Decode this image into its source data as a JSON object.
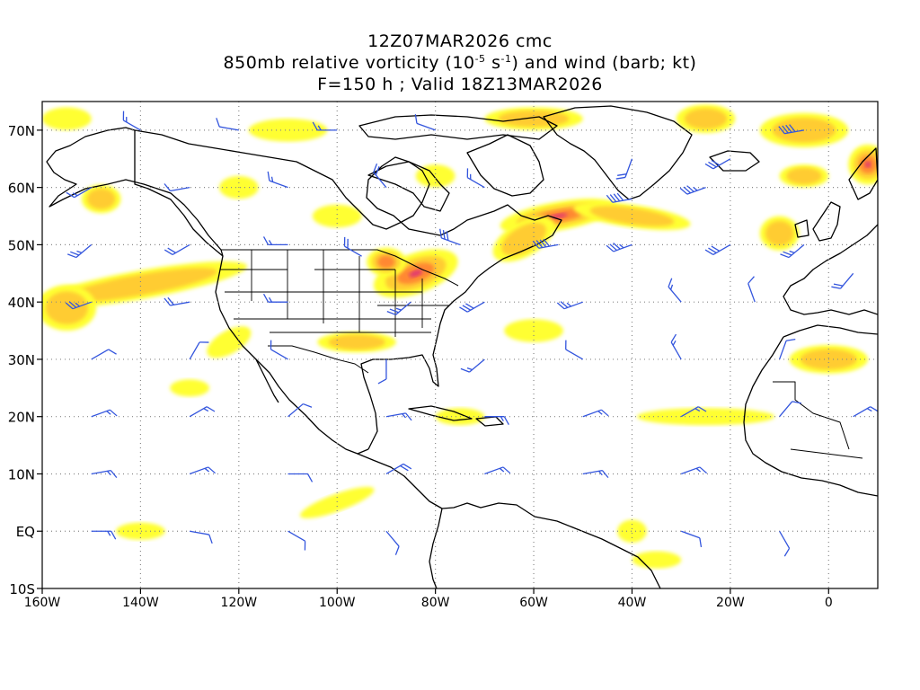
{
  "title": {
    "line1": "12Z07MAR2026 cmc",
    "line2_prefix": "850mb relative vorticity (10",
    "line2_exp1": "-5",
    "line2_mid": " s",
    "line2_exp2": "-1",
    "line2_suffix": ") and wind (barb; kt)",
    "line3": "F=150 h ; Valid 18Z13MAR2026"
  },
  "map": {
    "projection": "cylindrical equidistant",
    "lon_range": [
      -160,
      10
    ],
    "lat_range": [
      -10,
      75
    ],
    "lat_ticks": [
      {
        "value": 70,
        "label": "70N"
      },
      {
        "value": 60,
        "label": "60N"
      },
      {
        "value": 50,
        "label": "50N"
      },
      {
        "value": 40,
        "label": "40N"
      },
      {
        "value": 30,
        "label": "30N"
      },
      {
        "value": 20,
        "label": "20N"
      },
      {
        "value": 10,
        "label": "10N"
      },
      {
        "value": 0,
        "label": "EQ"
      },
      {
        "value": -10,
        "label": "10S"
      }
    ],
    "lon_ticks": [
      {
        "value": -160,
        "label": "160W"
      },
      {
        "value": -140,
        "label": "140W"
      },
      {
        "value": -120,
        "label": "120W"
      },
      {
        "value": -100,
        "label": "100W"
      },
      {
        "value": -80,
        "label": "80W"
      },
      {
        "value": -60,
        "label": "60W"
      },
      {
        "value": -40,
        "label": "40W"
      },
      {
        "value": -20,
        "label": "20W"
      },
      {
        "value": 0,
        "label": "0"
      }
    ],
    "colors": {
      "vort_low": "#ffff33",
      "vort_mid": "#ffcc33",
      "vort_high": "#ff8833",
      "vort_max": "#e23a6e",
      "barbs": "#3355dd",
      "coast": "#000000",
      "grid": "#888888"
    },
    "vorticity_features": [
      {
        "lon": -84,
        "lat": 45,
        "rx": 9,
        "ry": 3.5,
        "level": 4,
        "angle": -20
      },
      {
        "lon": -90,
        "lat": 47,
        "rx": 4,
        "ry": 2.5,
        "level": 3,
        "angle": 0
      },
      {
        "lon": -55,
        "lat": 55,
        "rx": 12,
        "ry": 2.5,
        "level": 4,
        "angle": -10
      },
      {
        "lon": -40,
        "lat": 55,
        "rx": 12,
        "ry": 2,
        "level": 2,
        "angle": 8
      },
      {
        "lon": -62,
        "lat": 51,
        "rx": 7,
        "ry": 3,
        "level": 2,
        "angle": -30
      },
      {
        "lon": -140,
        "lat": 43,
        "rx": 22,
        "ry": 2.5,
        "level": 2,
        "angle": -10
      },
      {
        "lon": -155,
        "lat": 39,
        "rx": 6,
        "ry": 4,
        "level": 2,
        "angle": 0
      },
      {
        "lon": -96,
        "lat": 33,
        "rx": 8,
        "ry": 1.8,
        "level": 2,
        "angle": 0
      },
      {
        "lon": -122,
        "lat": 33,
        "rx": 5,
        "ry": 2,
        "level": 1,
        "angle": -30
      },
      {
        "lon": 8,
        "lat": 64,
        "rx": 4,
        "ry": 3.5,
        "level": 4,
        "angle": 0
      },
      {
        "lon": -5,
        "lat": 70,
        "rx": 9,
        "ry": 3,
        "level": 2,
        "angle": 0
      },
      {
        "lon": -25,
        "lat": 72,
        "rx": 6,
        "ry": 2.5,
        "level": 2,
        "angle": 0
      },
      {
        "lon": -10,
        "lat": 52,
        "rx": 4,
        "ry": 3,
        "level": 2,
        "angle": 0
      },
      {
        "lon": 0,
        "lat": 30,
        "rx": 8,
        "ry": 2.5,
        "level": 2,
        "angle": 0
      },
      {
        "lon": -25,
        "lat": 20,
        "rx": 14,
        "ry": 1.5,
        "level": 1,
        "angle": 0
      },
      {
        "lon": -100,
        "lat": 5,
        "rx": 8,
        "ry": 1.5,
        "level": 1,
        "angle": -20
      },
      {
        "lon": -110,
        "lat": 70,
        "rx": 8,
        "ry": 2,
        "level": 1,
        "angle": 0
      },
      {
        "lon": -60,
        "lat": 72,
        "rx": 10,
        "ry": 2,
        "level": 2,
        "angle": 0
      },
      {
        "lon": -148,
        "lat": 58,
        "rx": 4,
        "ry": 2.5,
        "level": 2,
        "angle": 0
      },
      {
        "lon": -155,
        "lat": 72,
        "rx": 5,
        "ry": 2,
        "level": 1,
        "angle": 0
      },
      {
        "lon": -120,
        "lat": 60,
        "rx": 4,
        "ry": 2,
        "level": 1,
        "angle": 0
      },
      {
        "lon": -80,
        "lat": 62,
        "rx": 4,
        "ry": 2,
        "level": 1,
        "angle": 0
      },
      {
        "lon": -140,
        "lat": 0,
        "rx": 5,
        "ry": 1.5,
        "level": 1,
        "angle": 0
      },
      {
        "lon": -75,
        "lat": 20,
        "rx": 5,
        "ry": 1.5,
        "level": 1,
        "angle": 0
      },
      {
        "lon": -60,
        "lat": 35,
        "rx": 6,
        "ry": 2,
        "level": 1,
        "angle": 0
      },
      {
        "lon": -130,
        "lat": 25,
        "rx": 4,
        "ry": 1.5,
        "level": 1,
        "angle": 0
      },
      {
        "lon": -35,
        "lat": -5,
        "rx": 5,
        "ry": 1.5,
        "level": 1,
        "angle": 0
      },
      {
        "lon": -100,
        "lat": 55,
        "rx": 5,
        "ry": 2,
        "level": 1,
        "angle": 0
      },
      {
        "lon": -40,
        "lat": 0,
        "rx": 3,
        "ry": 2,
        "level": 1,
        "angle": 0
      },
      {
        "lon": -5,
        "lat": 62,
        "rx": 5,
        "ry": 2,
        "level": 2,
        "angle": 0
      }
    ],
    "wind_barbs": [
      {
        "lon": -140,
        "lat": 70,
        "dir": 300,
        "spd": 15
      },
      {
        "lon": -120,
        "lat": 70,
        "dir": 280,
        "spd": 10
      },
      {
        "lon": -100,
        "lat": 70,
        "dir": 270,
        "spd": 15
      },
      {
        "lon": -80,
        "lat": 70,
        "dir": 290,
        "spd": 10
      },
      {
        "lon": -40,
        "lat": 65,
        "dir": 200,
        "spd": 20
      },
      {
        "lon": -20,
        "lat": 65,
        "dir": 240,
        "spd": 30
      },
      {
        "lon": -5,
        "lat": 70,
        "dir": 260,
        "spd": 40
      },
      {
        "lon": -150,
        "lat": 60,
        "dir": 240,
        "spd": 15
      },
      {
        "lon": -130,
        "lat": 60,
        "dir": 260,
        "spd": 10
      },
      {
        "lon": -110,
        "lat": 60,
        "dir": 290,
        "spd": 15
      },
      {
        "lon": -90,
        "lat": 60,
        "dir": 320,
        "spd": 20
      },
      {
        "lon": -70,
        "lat": 60,
        "dir": 300,
        "spd": 15
      },
      {
        "lon": -40,
        "lat": 58,
        "dir": 260,
        "spd": 40
      },
      {
        "lon": -25,
        "lat": 60,
        "dir": 250,
        "spd": 35
      },
      {
        "lon": -150,
        "lat": 50,
        "dir": 230,
        "spd": 25
      },
      {
        "lon": -130,
        "lat": 50,
        "dir": 240,
        "spd": 20
      },
      {
        "lon": -110,
        "lat": 50,
        "dir": 270,
        "spd": 15
      },
      {
        "lon": -95,
        "lat": 48,
        "dir": 300,
        "spd": 20
      },
      {
        "lon": -75,
        "lat": 50,
        "dir": 290,
        "spd": 30
      },
      {
        "lon": -55,
        "lat": 50,
        "dir": 260,
        "spd": 40
      },
      {
        "lon": -40,
        "lat": 50,
        "dir": 250,
        "spd": 35
      },
      {
        "lon": -20,
        "lat": 50,
        "dir": 240,
        "spd": 30
      },
      {
        "lon": -5,
        "lat": 50,
        "dir": 230,
        "spd": 25
      },
      {
        "lon": 5,
        "lat": 45,
        "dir": 220,
        "spd": 20
      },
      {
        "lon": -150,
        "lat": 40,
        "dir": 250,
        "spd": 25
      },
      {
        "lon": -130,
        "lat": 40,
        "dir": 260,
        "spd": 20
      },
      {
        "lon": -110,
        "lat": 40,
        "dir": 270,
        "spd": 15
      },
      {
        "lon": -85,
        "lat": 40,
        "dir": 230,
        "spd": 25
      },
      {
        "lon": -70,
        "lat": 40,
        "dir": 240,
        "spd": 30
      },
      {
        "lon": -50,
        "lat": 40,
        "dir": 250,
        "spd": 25
      },
      {
        "lon": -30,
        "lat": 40,
        "dir": 320,
        "spd": 15
      },
      {
        "lon": -15,
        "lat": 40,
        "dir": 340,
        "spd": 10
      },
      {
        "lon": -150,
        "lat": 30,
        "dir": 60,
        "spd": 10
      },
      {
        "lon": -130,
        "lat": 30,
        "dir": 30,
        "spd": 10
      },
      {
        "lon": -110,
        "lat": 30,
        "dir": 300,
        "spd": 10
      },
      {
        "lon": -90,
        "lat": 30,
        "dir": 180,
        "spd": 10
      },
      {
        "lon": -70,
        "lat": 30,
        "dir": 230,
        "spd": 15
      },
      {
        "lon": -50,
        "lat": 30,
        "dir": 300,
        "spd": 10
      },
      {
        "lon": -30,
        "lat": 30,
        "dir": 330,
        "spd": 15
      },
      {
        "lon": -10,
        "lat": 30,
        "dir": 20,
        "spd": 10
      },
      {
        "lon": -150,
        "lat": 20,
        "dir": 70,
        "spd": 15
      },
      {
        "lon": -130,
        "lat": 20,
        "dir": 60,
        "spd": 15
      },
      {
        "lon": -110,
        "lat": 20,
        "dir": 50,
        "spd": 10
      },
      {
        "lon": -90,
        "lat": 20,
        "dir": 80,
        "spd": 15
      },
      {
        "lon": -70,
        "lat": 20,
        "dir": 90,
        "spd": 15
      },
      {
        "lon": -50,
        "lat": 20,
        "dir": 70,
        "spd": 15
      },
      {
        "lon": -30,
        "lat": 20,
        "dir": 60,
        "spd": 15
      },
      {
        "lon": -10,
        "lat": 20,
        "dir": 40,
        "spd": 10
      },
      {
        "lon": 5,
        "lat": 20,
        "dir": 60,
        "spd": 15
      },
      {
        "lon": -150,
        "lat": 10,
        "dir": 80,
        "spd": 15
      },
      {
        "lon": -130,
        "lat": 10,
        "dir": 70,
        "spd": 15
      },
      {
        "lon": -110,
        "lat": 10,
        "dir": 90,
        "spd": 10
      },
      {
        "lon": -90,
        "lat": 10,
        "dir": 60,
        "spd": 20
      },
      {
        "lon": -70,
        "lat": 10,
        "dir": 70,
        "spd": 15
      },
      {
        "lon": -50,
        "lat": 10,
        "dir": 80,
        "spd": 15
      },
      {
        "lon": -30,
        "lat": 10,
        "dir": 70,
        "spd": 15
      },
      {
        "lon": -150,
        "lat": 0,
        "dir": 90,
        "spd": 15
      },
      {
        "lon": -130,
        "lat": 0,
        "dir": 100,
        "spd": 10
      },
      {
        "lon": -110,
        "lat": 0,
        "dir": 120,
        "spd": 10
      },
      {
        "lon": -90,
        "lat": 0,
        "dir": 140,
        "spd": 10
      },
      {
        "lon": -30,
        "lat": 0,
        "dir": 110,
        "spd": 10
      },
      {
        "lon": -10,
        "lat": 0,
        "dir": 150,
        "spd": 10
      },
      {
        "lon": -130,
        "lat": -10,
        "dir": 120,
        "spd": 10
      },
      {
        "lon": -90,
        "lat": -10,
        "dir": 130,
        "spd": 10
      },
      {
        "lon": -40,
        "lat": -10,
        "dir": 100,
        "spd": 10
      }
    ]
  }
}
